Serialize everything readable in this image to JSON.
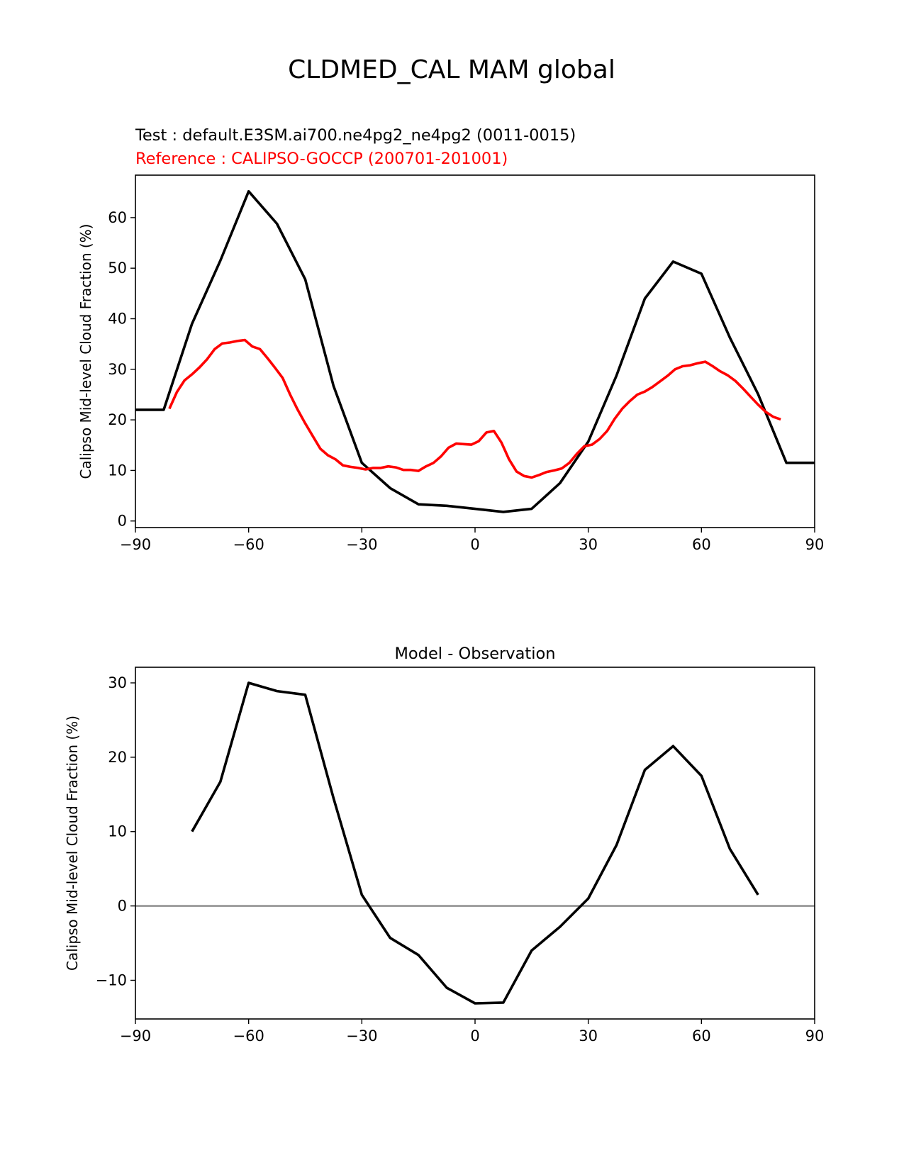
{
  "figure": {
    "title": "CLDMED_CAL MAM global",
    "test_label": "Test : default.E3SM.ai700.ne4pg2_ne4pg2 (0011-0015)",
    "ref_label": "Reference : CALIPSO-GOCCP (200701-201001)"
  },
  "colors": {
    "test": "#000000",
    "reference": "#ff0000",
    "zero_line": "#808080"
  },
  "chart_data": [
    {
      "type": "line",
      "title": "",
      "xlabel": "",
      "ylabel": "Calipso Mid-level Cloud Fraction (%)",
      "xlim": [
        -90,
        90
      ],
      "ylim": [
        -1.3,
        68.4
      ],
      "xticks": [
        -90,
        -60,
        -30,
        0,
        30,
        60,
        90
      ],
      "yticks": [
        0,
        10,
        20,
        30,
        40,
        50,
        60
      ],
      "grid": false,
      "series": [
        {
          "name": "test",
          "color": "#000000",
          "x": [
            -90,
            -82.5,
            -75,
            -67.5,
            -60,
            -52.5,
            -45,
            -37.5,
            -30,
            -22.5,
            -15,
            -7.5,
            0,
            7.5,
            15,
            22.5,
            30,
            37.5,
            45,
            52.5,
            60,
            67.5,
            75,
            82.5,
            90
          ],
          "y": [
            22,
            22,
            39,
            51.5,
            65.2,
            58.8,
            47.8,
            26.7,
            11.5,
            6.5,
            3.3,
            3,
            2.4,
            1.8,
            2.4,
            7.5,
            15.7,
            28.8,
            44,
            51.3,
            48.9,
            36.3,
            25.1,
            11.5,
            11.5
          ]
        },
        {
          "name": "reference",
          "color": "#ff0000",
          "x": [
            -81,
            -79,
            -77,
            -75,
            -73,
            -71,
            -69,
            -67,
            -65,
            -63,
            -61,
            -59,
            -57,
            -55,
            -53,
            -51,
            -49,
            -47,
            -45,
            -43,
            -41,
            -39,
            -37,
            -35,
            -33,
            -31,
            -29,
            -27,
            -25,
            -23,
            -21,
            -19,
            -17,
            -15,
            -13,
            -11,
            -9,
            -7,
            -5,
            -3,
            -1,
            1,
            3,
            5,
            7,
            9,
            11,
            13,
            15,
            17,
            19,
            21,
            23,
            25,
            27,
            29,
            31,
            33,
            35,
            37,
            39,
            41,
            43,
            45,
            47,
            49,
            51,
            53,
            55,
            57,
            59,
            61,
            63,
            65,
            67,
            69,
            71,
            73,
            75,
            77,
            79,
            81
          ],
          "y": [
            22.2,
            25.5,
            27.8,
            29,
            30.4,
            32,
            34,
            35.1,
            35.3,
            35.6,
            35.8,
            34.5,
            34,
            32.2,
            30.3,
            28.3,
            25,
            22,
            19.3,
            16.8,
            14.3,
            13,
            12.2,
            11,
            10.7,
            10.5,
            10.2,
            10.5,
            10.5,
            10.8,
            10.6,
            10.1,
            10.1,
            9.9,
            10.8,
            11.5,
            12.8,
            14.5,
            15.3,
            15.2,
            15.1,
            15.8,
            17.5,
            17.8,
            15.5,
            12.2,
            9.8,
            8.9,
            8.6,
            9.1,
            9.7,
            10,
            10.4,
            11.5,
            13.3,
            14.8,
            15.1,
            16.2,
            17.8,
            20.2,
            22.2,
            23.7,
            25,
            25.6,
            26.5,
            27.6,
            28.7,
            30,
            30.6,
            30.8,
            31.2,
            31.5,
            30.6,
            29.6,
            28.8,
            27.7,
            26.2,
            24.6,
            23,
            21.6,
            20.6,
            20.1
          ]
        }
      ]
    },
    {
      "type": "line",
      "title": "Model - Observation",
      "xlabel": "",
      "ylabel": "Calipso Mid-level Cloud Fraction (%)",
      "xlim": [
        -90,
        90
      ],
      "ylim": [
        -15.2,
        32.1
      ],
      "xticks": [
        -90,
        -60,
        -30,
        0,
        30,
        60,
        90
      ],
      "yticks": [
        -10,
        0,
        10,
        20,
        30
      ],
      "grid": false,
      "zero_line": true,
      "series": [
        {
          "name": "difference",
          "color": "#000000",
          "x": [
            -75,
            -67.5,
            -60,
            -52.5,
            -45,
            -37.5,
            -30,
            -22.5,
            -15,
            -7.5,
            0,
            7.5,
            15,
            22.5,
            30,
            37.5,
            45,
            52.5,
            60,
            67.5,
            75
          ],
          "y": [
            10,
            16.7,
            30,
            28.9,
            28.4,
            14.5,
            1.5,
            -4.3,
            -6.6,
            -11,
            -13.1,
            -13,
            -6,
            -2.8,
            1,
            8.2,
            18.3,
            21.5,
            17.5,
            7.7,
            1.5
          ]
        }
      ]
    }
  ]
}
